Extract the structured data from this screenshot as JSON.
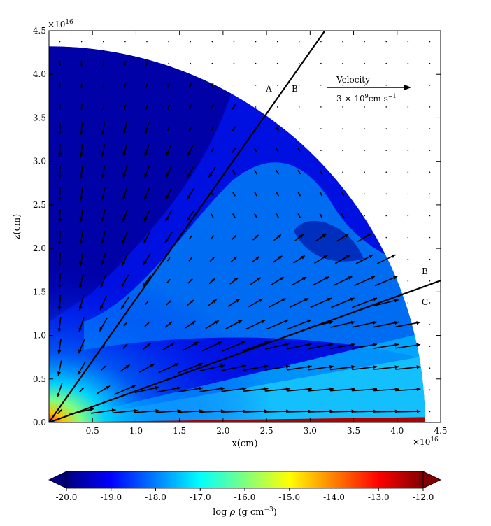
{
  "chart_data": {
    "type": "heatmap",
    "title": "",
    "xlabel": "x(cm)",
    "ylabel": "z(cm)",
    "xlim": [
      0,
      4.5
    ],
    "ylim": [
      0,
      4.5
    ],
    "x_ticks": [
      "0.5",
      "1.0",
      "1.5",
      "2.0",
      "2.5",
      "3.0",
      "3.5",
      "4.0",
      "4.5"
    ],
    "y_ticks": [
      "0.0",
      "0.5",
      "1.0",
      "1.5",
      "2.0",
      "2.5",
      "3.0",
      "3.5",
      "4.0",
      "4.5"
    ],
    "x_exponent": "16",
    "y_exponent": "16",
    "exponent_prefix": "×10",
    "domain_radius": 4.32,
    "lines": [
      {
        "label": "A",
        "x_end": 3.17,
        "y_end": 4.5
      },
      {
        "label": "B",
        "x_end": 4.5,
        "y_end": 1.63
      },
      {
        "label": "C",
        "x_end": 4.5,
        "y_end": 0.0
      }
    ],
    "line_label_B_top": "B",
    "velocity_key": {
      "title": "Velocity",
      "value_text_prefix": "3 × 10",
      "value_text_exp": "9",
      "value_text_suffix": "cm s",
      "value_text_exp2": "−1"
    },
    "colorbar": {
      "label_prefix": "log ",
      "label_symbol": "ρ",
      "label_units": " (g cm",
      "label_units_exp": "−3",
      "label_close": ")",
      "ticks": [
        "-20.0",
        "-19.0",
        "-18.0",
        "-17.0",
        "-16.0",
        "-15.0",
        "-14.0",
        "-13.0",
        "-12.0"
      ],
      "min": -20,
      "max": -12,
      "colors": [
        "#00007f",
        "#0000ff",
        "#007fff",
        "#00ffff",
        "#7fff7f",
        "#ffff00",
        "#ff7f00",
        "#ff0000",
        "#7f0000"
      ]
    }
  }
}
